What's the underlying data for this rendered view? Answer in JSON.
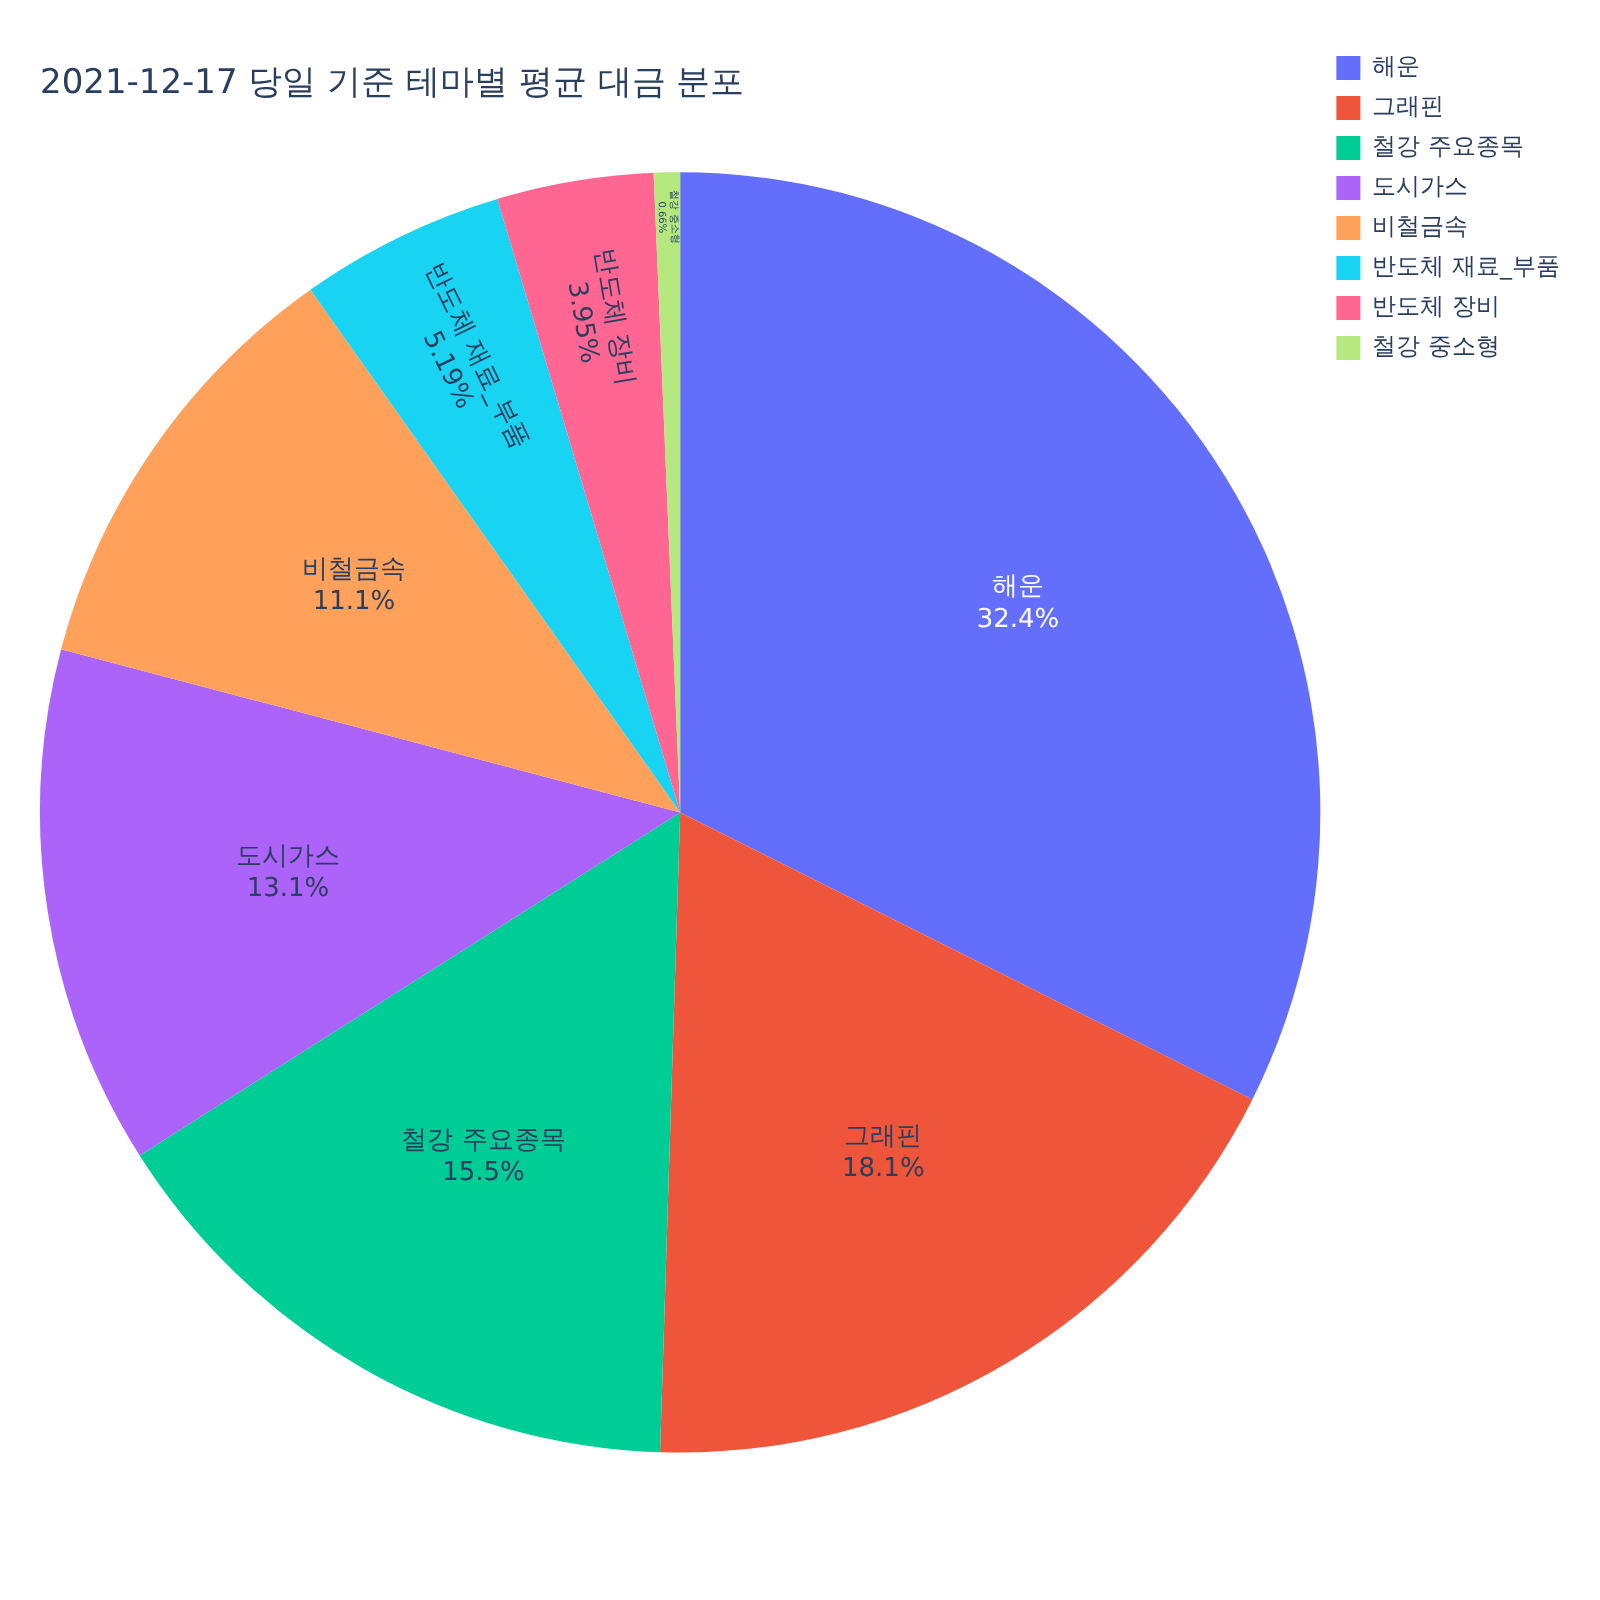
{
  "chart_data": {
    "type": "pie",
    "title": "2021-12-17 당일 기준 테마별 평균 대금 분포",
    "categories": [
      "해운",
      "그래핀",
      "철강 주요종목",
      "도시가스",
      "비철금속",
      "반도체 재료_부품",
      "반도체 장비",
      "철강 중소형"
    ],
    "values": [
      32.4,
      18.1,
      15.5,
      13.1,
      11.1,
      5.19,
      3.95,
      0.66
    ],
    "value_labels": [
      "32.4%",
      "18.1%",
      "15.5%",
      "13.1%",
      "11.1%",
      "5.19%",
      "3.95%",
      "0.66%"
    ],
    "colors": [
      "#636efa",
      "#ef553b",
      "#00cc96",
      "#ab63fa",
      "#ffa15a",
      "#19d3f3",
      "#ff6692",
      "#b6e880"
    ],
    "legend": "top right"
  }
}
